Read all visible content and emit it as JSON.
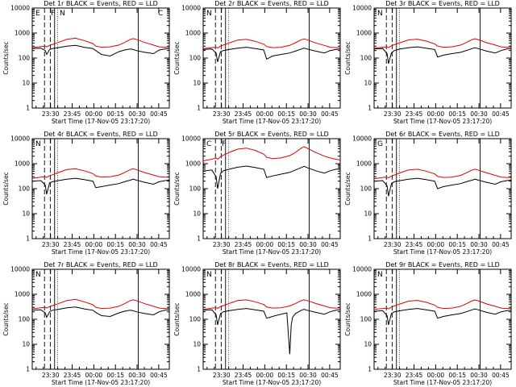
{
  "figure": {
    "width": 640,
    "height": 480
  },
  "common": {
    "xlabel": "Start Time (17-Nov-05 23:17:20)",
    "ylabel": "Counts/sec",
    "legend_title_suffix": "BLACK = Events, RED = LLD",
    "xticks": [
      "23:30",
      "23:45",
      "00:00",
      "00:15",
      "00:30",
      "00:45"
    ],
    "yticks": [
      "1",
      "10",
      "100",
      "1000",
      "10000"
    ],
    "events_color": "#000000",
    "lld_color": "#e00000"
  },
  "chart_data": [
    {
      "type": "line",
      "title": "Det 1r BLACK = Events, RED = LLD",
      "xlabel": "Start Time (17-Nov-05 23:17:20)",
      "ylabel": "Counts/sec",
      "ylim": [
        1,
        10000
      ],
      "yscale": "log",
      "xlim_min": [
        0,
        95
      ],
      "series": [
        {
          "name": "Events",
          "x": [
            0,
            6,
            9,
            10,
            12,
            14,
            18,
            24,
            30,
            36,
            42,
            44,
            48,
            54,
            60,
            64,
            68,
            70,
            72,
            78,
            84,
            88,
            92,
            95
          ],
          "y": [
            240,
            250,
            200,
            140,
            220,
            240,
            260,
            300,
            320,
            270,
            240,
            200,
            140,
            120,
            180,
            210,
            230,
            220,
            200,
            170,
            150,
            210,
            230,
            240
          ]
        },
        {
          "name": "LLD",
          "x": [
            0,
            6,
            9,
            10,
            12,
            14,
            18,
            24,
            30,
            36,
            42,
            44,
            48,
            54,
            60,
            64,
            68,
            70,
            72,
            78,
            84,
            88,
            92,
            95
          ],
          "y": [
            260,
            290,
            300,
            280,
            320,
            350,
            420,
            560,
            620,
            500,
            380,
            300,
            270,
            280,
            330,
            420,
            560,
            600,
            560,
            420,
            330,
            280,
            270,
            270
          ]
        }
      ],
      "markers": [
        "E",
        "F",
        "N",
        "C"
      ]
    },
    {
      "type": "line",
      "title": "Det 2r BLACK = Events, RED = LLD",
      "xlabel": "Start Time (17-Nov-05 23:17:20)",
      "ylabel": "Counts/sec",
      "ylim": [
        1,
        10000
      ],
      "yscale": "log",
      "series": [
        {
          "name": "Events",
          "x": [
            0,
            6,
            9,
            10,
            12,
            14,
            18,
            24,
            30,
            36,
            42,
            44,
            48,
            54,
            60,
            64,
            68,
            70,
            72,
            78,
            84,
            88,
            92,
            95
          ],
          "y": [
            220,
            230,
            160,
            70,
            180,
            200,
            220,
            250,
            270,
            240,
            210,
            90,
            120,
            140,
            160,
            190,
            230,
            250,
            230,
            190,
            160,
            200,
            220,
            230
          ]
        },
        {
          "name": "LLD",
          "x": [
            0,
            6,
            9,
            10,
            12,
            14,
            18,
            24,
            30,
            36,
            42,
            44,
            48,
            54,
            60,
            64,
            68,
            70,
            72,
            78,
            84,
            88,
            92,
            95
          ],
          "y": [
            240,
            260,
            270,
            250,
            300,
            330,
            400,
            520,
            560,
            470,
            360,
            290,
            260,
            270,
            320,
            410,
            540,
            580,
            540,
            400,
            320,
            270,
            260,
            260
          ]
        }
      ],
      "markers": [
        "N"
      ]
    },
    {
      "type": "line",
      "title": "Det 3r BLACK = Events, RED = LLD",
      "xlabel": "Start Time (17-Nov-05 23:17:20)",
      "ylabel": "Counts/sec",
      "ylim": [
        1,
        10000
      ],
      "yscale": "log",
      "series": [
        {
          "name": "Events",
          "x": [
            0,
            6,
            9,
            10,
            12,
            14,
            18,
            24,
            30,
            36,
            42,
            44,
            48,
            54,
            60,
            64,
            68,
            70,
            72,
            78,
            84,
            88,
            92,
            95
          ],
          "y": [
            230,
            240,
            150,
            60,
            160,
            200,
            230,
            260,
            280,
            250,
            220,
            110,
            130,
            150,
            170,
            200,
            240,
            260,
            240,
            190,
            160,
            200,
            230,
            240
          ]
        },
        {
          "name": "LLD",
          "x": [
            0,
            6,
            9,
            10,
            12,
            14,
            18,
            24,
            30,
            36,
            42,
            44,
            48,
            54,
            60,
            64,
            68,
            70,
            72,
            78,
            84,
            88,
            92,
            95
          ],
          "y": [
            250,
            270,
            280,
            260,
            310,
            340,
            410,
            530,
            570,
            480,
            370,
            300,
            270,
            280,
            330,
            420,
            550,
            590,
            550,
            410,
            330,
            280,
            270,
            270
          ]
        }
      ],
      "markers": [
        "N"
      ]
    },
    {
      "type": "line",
      "title": "Det 4r BLACK = Events, RED = LLD",
      "xlabel": "Start Time (17-Nov-05 23:17:20)",
      "ylabel": "Counts/sec",
      "ylim": [
        1,
        10000
      ],
      "yscale": "log",
      "series": [
        {
          "name": "Events",
          "x": [
            0,
            6,
            9,
            10,
            12,
            14,
            18,
            24,
            30,
            36,
            42,
            44,
            48,
            54,
            60,
            64,
            68,
            70,
            72,
            78,
            84,
            88,
            92,
            95
          ],
          "y": [
            200,
            210,
            140,
            60,
            170,
            190,
            210,
            240,
            260,
            230,
            200,
            110,
            120,
            140,
            160,
            190,
            220,
            240,
            220,
            180,
            150,
            190,
            210,
            220
          ]
        },
        {
          "name": "LLD",
          "x": [
            0,
            6,
            9,
            10,
            12,
            14,
            18,
            24,
            30,
            36,
            42,
            44,
            48,
            54,
            60,
            64,
            68,
            70,
            72,
            78,
            84,
            88,
            92,
            95
          ],
          "y": [
            260,
            290,
            300,
            280,
            330,
            360,
            440,
            580,
            620,
            520,
            400,
            320,
            290,
            300,
            350,
            440,
            580,
            620,
            580,
            440,
            350,
            300,
            290,
            290
          ]
        }
      ],
      "markers": [
        "N"
      ]
    },
    {
      "type": "line",
      "title": "Det 5r BLACK = Events, RED = LLD",
      "xlabel": "Start Time (17-Nov-05 23:17:20)",
      "ylabel": "Counts/sec",
      "ylim": [
        1,
        10000
      ],
      "yscale": "log",
      "series": [
        {
          "name": "Events",
          "x": [
            0,
            6,
            9,
            10,
            12,
            14,
            18,
            24,
            30,
            36,
            42,
            44,
            48,
            54,
            60,
            64,
            68,
            70,
            72,
            78,
            84,
            88,
            92,
            95
          ],
          "y": [
            500,
            560,
            300,
            100,
            400,
            520,
            600,
            720,
            800,
            700,
            600,
            280,
            320,
            380,
            450,
            560,
            700,
            780,
            700,
            520,
            420,
            520,
            600,
            620
          ]
        },
        {
          "name": "LLD",
          "x": [
            0,
            6,
            9,
            10,
            12,
            14,
            18,
            24,
            30,
            36,
            42,
            44,
            48,
            54,
            60,
            64,
            68,
            70,
            72,
            78,
            84,
            88,
            92,
            95
          ],
          "y": [
            1300,
            1500,
            1700,
            1500,
            1900,
            2200,
            2800,
            3800,
            4200,
            3400,
            2400,
            1800,
            1600,
            1700,
            2100,
            2800,
            4200,
            4800,
            4200,
            2800,
            2000,
            1700,
            1500,
            1400
          ]
        }
      ],
      "markers": [
        "C",
        "F"
      ]
    },
    {
      "type": "line",
      "title": "Det 6r BLACK = Events, RED = LLD",
      "xlabel": "Start Time (17-Nov-05 23:17:20)",
      "ylabel": "Counts/sec",
      "ylim": [
        1,
        10000
      ],
      "yscale": "log",
      "series": [
        {
          "name": "Events",
          "x": [
            0,
            6,
            9,
            10,
            12,
            14,
            18,
            24,
            30,
            36,
            42,
            44,
            48,
            54,
            60,
            64,
            68,
            70,
            72,
            78,
            84,
            88,
            92,
            95
          ],
          "y": [
            200,
            210,
            130,
            50,
            160,
            190,
            210,
            240,
            260,
            230,
            200,
            100,
            120,
            140,
            160,
            190,
            220,
            240,
            220,
            180,
            150,
            190,
            210,
            220
          ]
        },
        {
          "name": "LLD",
          "x": [
            0,
            6,
            9,
            10,
            12,
            14,
            18,
            24,
            30,
            36,
            42,
            44,
            48,
            54,
            60,
            64,
            68,
            70,
            72,
            78,
            84,
            88,
            92,
            95
          ],
          "y": [
            250,
            280,
            290,
            270,
            320,
            350,
            430,
            560,
            600,
            500,
            390,
            310,
            280,
            290,
            340,
            430,
            560,
            600,
            560,
            430,
            340,
            290,
            280,
            280
          ]
        }
      ],
      "markers": [
        "G"
      ]
    },
    {
      "type": "line",
      "title": "Det 7r BLACK = Events, RED = LLD",
      "xlabel": "Start Time (17-Nov-05 23:17:20)",
      "ylabel": "Counts/sec",
      "ylim": [
        1,
        10000
      ],
      "yscale": "log",
      "series": [
        {
          "name": "Events",
          "x": [
            0,
            6,
            9,
            10,
            12,
            14,
            18,
            24,
            30,
            36,
            42,
            44,
            48,
            54,
            60,
            64,
            68,
            70,
            72,
            78,
            84,
            88,
            92,
            95
          ],
          "y": [
            230,
            240,
            180,
            120,
            200,
            230,
            250,
            290,
            310,
            260,
            230,
            190,
            140,
            130,
            180,
            210,
            230,
            220,
            200,
            170,
            150,
            200,
            230,
            240
          ]
        },
        {
          "name": "LLD",
          "x": [
            0,
            6,
            9,
            10,
            12,
            14,
            18,
            24,
            30,
            36,
            42,
            44,
            48,
            54,
            60,
            64,
            68,
            70,
            72,
            78,
            84,
            88,
            92,
            95
          ],
          "y": [
            260,
            290,
            300,
            280,
            320,
            350,
            420,
            560,
            620,
            500,
            380,
            300,
            270,
            280,
            330,
            420,
            560,
            600,
            560,
            420,
            330,
            280,
            270,
            270
          ]
        }
      ],
      "markers": [
        "N"
      ]
    },
    {
      "type": "line",
      "title": "Det 8r BLACK = Events, RED = LLD",
      "xlabel": "Start Time (17-Nov-05 23:17:20)",
      "ylabel": "Counts/sec",
      "ylim": [
        1,
        10000
      ],
      "yscale": "log",
      "series": [
        {
          "name": "Events",
          "x": [
            0,
            6,
            9,
            10,
            12,
            14,
            18,
            24,
            30,
            36,
            42,
            44,
            48,
            54,
            58,
            60,
            61,
            62,
            64,
            68,
            70,
            72,
            78,
            84,
            88,
            92,
            95
          ],
          "y": [
            230,
            240,
            150,
            60,
            170,
            200,
            220,
            250,
            270,
            240,
            210,
            110,
            130,
            160,
            180,
            4,
            60,
            120,
            170,
            230,
            250,
            230,
            190,
            160,
            200,
            230,
            240
          ]
        },
        {
          "name": "LLD",
          "x": [
            0,
            6,
            9,
            10,
            12,
            14,
            18,
            24,
            30,
            36,
            42,
            44,
            48,
            54,
            60,
            64,
            68,
            70,
            72,
            78,
            84,
            88,
            92,
            95
          ],
          "y": [
            250,
            280,
            290,
            270,
            320,
            350,
            430,
            560,
            600,
            500,
            390,
            310,
            280,
            290,
            340,
            430,
            560,
            600,
            560,
            430,
            340,
            290,
            280,
            280
          ]
        }
      ],
      "markers": [
        "N"
      ]
    },
    {
      "type": "line",
      "title": "Det 9r BLACK = Events, RED = LLD",
      "xlabel": "Start Time (17-Nov-05 23:17:20)",
      "ylabel": "Counts/sec",
      "ylim": [
        1,
        10000
      ],
      "yscale": "log",
      "series": [
        {
          "name": "Events",
          "x": [
            0,
            6,
            9,
            10,
            12,
            14,
            18,
            24,
            30,
            36,
            42,
            44,
            48,
            54,
            60,
            64,
            68,
            70,
            72,
            78,
            84,
            88,
            92,
            95
          ],
          "y": [
            210,
            220,
            140,
            60,
            170,
            200,
            220,
            250,
            270,
            240,
            210,
            110,
            130,
            150,
            170,
            200,
            240,
            260,
            240,
            190,
            160,
            200,
            220,
            230
          ]
        },
        {
          "name": "LLD",
          "x": [
            0,
            6,
            9,
            10,
            12,
            14,
            18,
            24,
            30,
            36,
            42,
            44,
            48,
            54,
            60,
            64,
            68,
            70,
            72,
            78,
            84,
            88,
            92,
            95
          ],
          "y": [
            250,
            270,
            280,
            260,
            310,
            340,
            410,
            530,
            570,
            480,
            370,
            300,
            270,
            280,
            330,
            420,
            550,
            590,
            550,
            410,
            330,
            280,
            270,
            270
          ]
        }
      ],
      "markers": [
        "N"
      ]
    }
  ]
}
